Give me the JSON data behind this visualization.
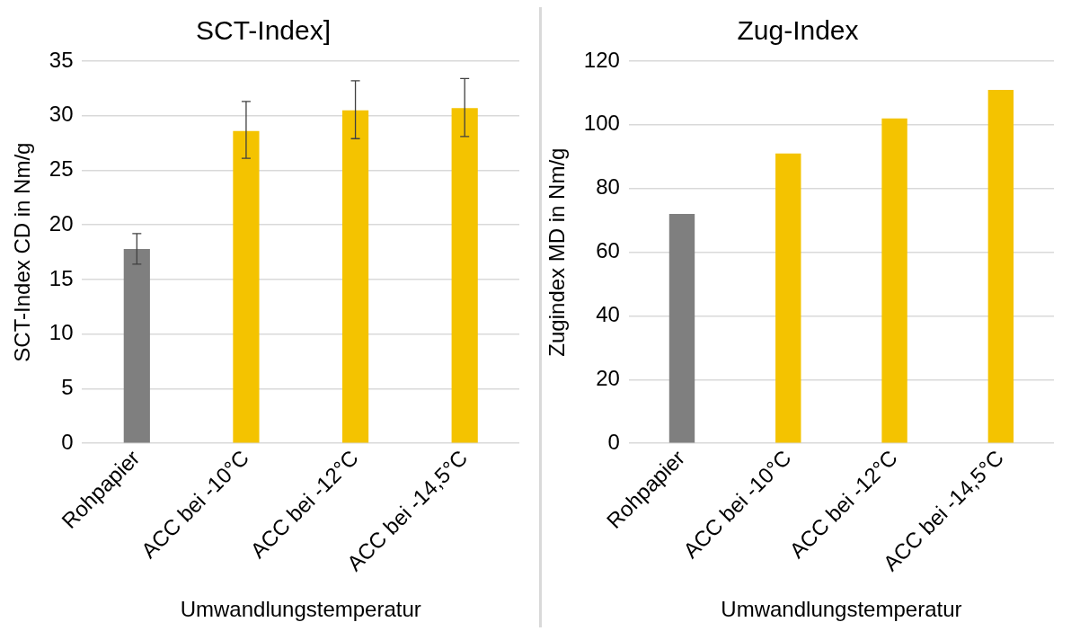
{
  "chart_data": [
    {
      "type": "bar",
      "title": "SCT-Index]",
      "xlabel": "Umwandlungstemperatur",
      "ylabel": "SCT-Index CD in Nm/g",
      "categories": [
        "Rohpapier",
        "ACC bei -10°C",
        "ACC bei -12°C",
        "ACC bei -14,5°C"
      ],
      "values": [
        17.8,
        28.6,
        30.5,
        30.7
      ],
      "colors": [
        "#7f7f7f",
        "#f4c300",
        "#f4c300",
        "#f4c300"
      ],
      "errors": [
        [
          16.4,
          19.2
        ],
        [
          26.1,
          31.3
        ],
        [
          27.9,
          33.2
        ],
        [
          28.1,
          33.4
        ]
      ],
      "ylim": [
        0,
        35
      ],
      "yticks": [
        0,
        5,
        10,
        15,
        20,
        25,
        30,
        35
      ],
      "grid": "y",
      "legend": false
    },
    {
      "type": "bar",
      "title": "Zug-Index",
      "xlabel": "Umwandlungstemperatur",
      "ylabel": "Zugindex MD in Nm/g",
      "categories": [
        "Rohpapier",
        "ACC bei -10°C",
        "ACC bei -12°C",
        "ACC bei -14,5°C"
      ],
      "values": [
        72,
        91,
        102,
        111
      ],
      "colors": [
        "#7f7f7f",
        "#f4c300",
        "#f4c300",
        "#f4c300"
      ],
      "ylim": [
        0,
        120
      ],
      "yticks": [
        0,
        20,
        40,
        60,
        80,
        100,
        120
      ],
      "grid": "y",
      "legend": false
    }
  ]
}
